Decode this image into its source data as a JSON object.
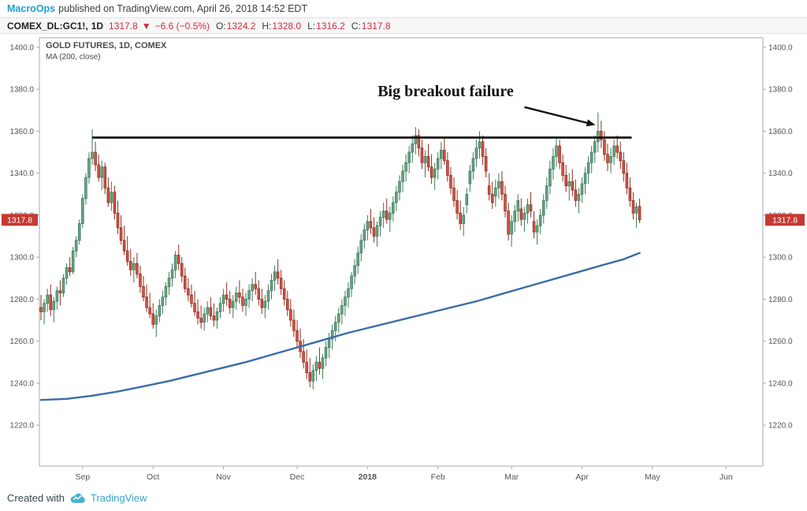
{
  "publish_bar": {
    "author": "MacroOps",
    "text": "published on TradingView.com, April 26, 2018 14:52 EDT"
  },
  "symbol_bar": {
    "symbol": "COMEX_DL:GC1!,",
    "interval": "1D",
    "last": "1317.8",
    "direction": "▼",
    "change": "−6.6 (−0.5%)",
    "ohlc": [
      {
        "label": "O:",
        "value": "1324.2"
      },
      {
        "label": "H:",
        "value": "1328.0"
      },
      {
        "label": "L:",
        "value": "1316.2"
      },
      {
        "label": "C:",
        "value": "1317.8"
      }
    ]
  },
  "legend": {
    "title": "GOLD FUTURES, 1D, COMEX",
    "ma": "MA (200, close)"
  },
  "annotation": {
    "text": "Big breakout failure"
  },
  "footer": {
    "created_with": "Created with",
    "brand": "TradingView"
  },
  "colors": {
    "up": "#6ba583",
    "up_border": "#3d7a5c",
    "down": "#d75442",
    "down_border": "#8f2d22",
    "ma": "#3a6ca8",
    "resistance": "#000000",
    "tag_bg": "#c43a32",
    "tag_text": "#ffffff",
    "axis_text": "#555555",
    "value_red": "#cf2e3c",
    "author_accent": "#1e9fd4",
    "brand_accent": "#3ba3c9"
  },
  "chart_data": {
    "type": "candlestick",
    "title": "GOLD FUTURES, 1D, COMEX",
    "overlay": "MA (200, close)",
    "last_price": 1317.8,
    "price_domain": [
      1200.5,
      1404.5
    ],
    "price_ticks": [
      1400,
      1380,
      1360,
      1340,
      1320,
      1300,
      1280,
      1260,
      1240,
      1220
    ],
    "total_slots": 226,
    "month_ticks": [
      {
        "label": "Sep",
        "slot": 13
      },
      {
        "label": "Oct",
        "slot": 35
      },
      {
        "label": "Nov",
        "slot": 57
      },
      {
        "label": "Dec",
        "slot": 80
      },
      {
        "label": "2018",
        "slot": 102,
        "bold": true
      },
      {
        "label": "Feb",
        "slot": 124
      },
      {
        "label": "Mar",
        "slot": 147
      },
      {
        "label": "Apr",
        "slot": 169
      },
      {
        "label": "May",
        "slot": 191
      },
      {
        "label": "Jun",
        "slot": 214
      }
    ],
    "resistance": {
      "price": 1357,
      "from_slot": 16,
      "to_slot": 184.5
    },
    "annotation": {
      "text": "Big breakout failure",
      "arrow": [
        151,
        1371.5,
        173.2,
        1363
      ]
    },
    "ma200_waypoints": [
      [
        0,
        1232
      ],
      [
        8,
        1232.5
      ],
      [
        16,
        1234
      ],
      [
        24,
        1236
      ],
      [
        32,
        1238.5
      ],
      [
        40,
        1241
      ],
      [
        48,
        1244
      ],
      [
        56,
        1247
      ],
      [
        64,
        1250
      ],
      [
        72,
        1253.5
      ],
      [
        80,
        1257
      ],
      [
        88,
        1260.5
      ],
      [
        96,
        1264
      ],
      [
        104,
        1267
      ],
      [
        112,
        1270
      ],
      [
        120,
        1273
      ],
      [
        128,
        1276
      ],
      [
        136,
        1279
      ],
      [
        144,
        1282.5
      ],
      [
        152,
        1286
      ],
      [
        160,
        1289.5
      ],
      [
        168,
        1293
      ],
      [
        176,
        1296.5
      ],
      [
        182,
        1299
      ],
      [
        187,
        1302
      ]
    ],
    "candles": [
      [
        1276,
        1282,
        1270,
        1274
      ],
      [
        1274,
        1280,
        1268,
        1278
      ],
      [
        1278,
        1285,
        1274,
        1282
      ],
      [
        1282,
        1287,
        1272,
        1275
      ],
      [
        1275,
        1281,
        1269,
        1279
      ],
      [
        1279,
        1286,
        1275,
        1284
      ],
      [
        1284,
        1289,
        1277,
        1283
      ],
      [
        1283,
        1292,
        1281,
        1290
      ],
      [
        1290,
        1297,
        1287,
        1295
      ],
      [
        1295,
        1300,
        1291,
        1293
      ],
      [
        1293,
        1305,
        1292,
        1303
      ],
      [
        1303,
        1310,
        1300,
        1308
      ],
      [
        1308,
        1318,
        1306,
        1316
      ],
      [
        1316,
        1330,
        1314,
        1328
      ],
      [
        1328,
        1340,
        1325,
        1338
      ],
      [
        1338,
        1350,
        1335,
        1347
      ],
      [
        1347,
        1361,
        1344,
        1350
      ],
      [
        1350,
        1355,
        1341,
        1344
      ],
      [
        1344,
        1349,
        1336,
        1338
      ],
      [
        1338,
        1346,
        1332,
        1343
      ],
      [
        1343,
        1345,
        1330,
        1333
      ],
      [
        1333,
        1338,
        1324,
        1326
      ],
      [
        1326,
        1336,
        1322,
        1331
      ],
      [
        1331,
        1334,
        1318,
        1321
      ],
      [
        1321,
        1327,
        1311,
        1314
      ],
      [
        1314,
        1320,
        1306,
        1308
      ],
      [
        1308,
        1315,
        1301,
        1303
      ],
      [
        1303,
        1310,
        1296,
        1298
      ],
      [
        1298,
        1304,
        1291,
        1294
      ],
      [
        1294,
        1300,
        1288,
        1297
      ],
      [
        1297,
        1302,
        1290,
        1292
      ],
      [
        1292,
        1296,
        1283,
        1286
      ],
      [
        1286,
        1291,
        1279,
        1281
      ],
      [
        1281,
        1287,
        1274,
        1276
      ],
      [
        1276,
        1283,
        1271,
        1273
      ],
      [
        1273,
        1278,
        1266,
        1268
      ],
      [
        1268,
        1275,
        1262,
        1272
      ],
      [
        1272,
        1280,
        1269,
        1277
      ],
      [
        1277,
        1284,
        1273,
        1281
      ],
      [
        1281,
        1288,
        1277,
        1286
      ],
      [
        1286,
        1293,
        1282,
        1290
      ],
      [
        1290,
        1297,
        1286,
        1294
      ],
      [
        1294,
        1303,
        1290,
        1301
      ],
      [
        1301,
        1306,
        1294,
        1297
      ],
      [
        1297,
        1300,
        1288,
        1291
      ],
      [
        1291,
        1295,
        1283,
        1285
      ],
      [
        1285,
        1290,
        1279,
        1282
      ],
      [
        1282,
        1287,
        1276,
        1278
      ],
      [
        1278,
        1284,
        1272,
        1274
      ],
      [
        1274,
        1280,
        1268,
        1271
      ],
      [
        1271,
        1277,
        1266,
        1269
      ],
      [
        1269,
        1276,
        1265,
        1273
      ],
      [
        1273,
        1279,
        1269,
        1276
      ],
      [
        1276,
        1281,
        1270,
        1272
      ],
      [
        1272,
        1278,
        1267,
        1270
      ],
      [
        1270,
        1276,
        1266,
        1274
      ],
      [
        1274,
        1281,
        1271,
        1278
      ],
      [
        1278,
        1285,
        1274,
        1282
      ],
      [
        1282,
        1288,
        1277,
        1280
      ],
      [
        1280,
        1284,
        1273,
        1276
      ],
      [
        1276,
        1282,
        1271,
        1279
      ],
      [
        1279,
        1286,
        1275,
        1283
      ],
      [
        1283,
        1289,
        1278,
        1281
      ],
      [
        1281,
        1285,
        1274,
        1277
      ],
      [
        1277,
        1283,
        1272,
        1280
      ],
      [
        1280,
        1287,
        1276,
        1284
      ],
      [
        1284,
        1290,
        1279,
        1287
      ],
      [
        1287,
        1293,
        1282,
        1285
      ],
      [
        1285,
        1289,
        1277,
        1280
      ],
      [
        1280,
        1285,
        1273,
        1276
      ],
      [
        1276,
        1282,
        1271,
        1279
      ],
      [
        1279,
        1287,
        1275,
        1284
      ],
      [
        1284,
        1292,
        1280,
        1289
      ],
      [
        1289,
        1296,
        1284,
        1293
      ],
      [
        1293,
        1299,
        1287,
        1290
      ],
      [
        1290,
        1294,
        1282,
        1285
      ],
      [
        1285,
        1289,
        1277,
        1280
      ],
      [
        1280,
        1284,
        1272,
        1275
      ],
      [
        1275,
        1280,
        1267,
        1270
      ],
      [
        1270,
        1275,
        1262,
        1265
      ],
      [
        1265,
        1270,
        1257,
        1260
      ],
      [
        1260,
        1266,
        1252,
        1255
      ],
      [
        1255,
        1261,
        1247,
        1250
      ],
      [
        1250,
        1256,
        1242,
        1245
      ],
      [
        1245,
        1252,
        1238,
        1241
      ],
      [
        1241,
        1249,
        1237,
        1246
      ],
      [
        1246,
        1253,
        1241,
        1250
      ],
      [
        1250,
        1257,
        1244,
        1247
      ],
      [
        1247,
        1254,
        1242,
        1252
      ],
      [
        1252,
        1260,
        1248,
        1257
      ],
      [
        1257,
        1264,
        1252,
        1261
      ],
      [
        1261,
        1268,
        1256,
        1265
      ],
      [
        1265,
        1272,
        1260,
        1269
      ],
      [
        1269,
        1276,
        1264,
        1273
      ],
      [
        1273,
        1280,
        1268,
        1277
      ],
      [
        1277,
        1284,
        1272,
        1281
      ],
      [
        1281,
        1288,
        1276,
        1285
      ],
      [
        1285,
        1293,
        1281,
        1291
      ],
      [
        1291,
        1299,
        1287,
        1296
      ],
      [
        1296,
        1305,
        1292,
        1302
      ],
      [
        1302,
        1311,
        1298,
        1308
      ],
      [
        1308,
        1316,
        1304,
        1313
      ],
      [
        1313,
        1320,
        1308,
        1317
      ],
      [
        1317,
        1323,
        1311,
        1314
      ],
      [
        1314,
        1319,
        1307,
        1310
      ],
      [
        1310,
        1317,
        1305,
        1315
      ],
      [
        1315,
        1322,
        1310,
        1319
      ],
      [
        1319,
        1326,
        1314,
        1322
      ],
      [
        1322,
        1328,
        1316,
        1318
      ],
      [
        1318,
        1324,
        1312,
        1321
      ],
      [
        1321,
        1329,
        1317,
        1326
      ],
      [
        1326,
        1334,
        1322,
        1331
      ],
      [
        1331,
        1339,
        1327,
        1336
      ],
      [
        1336,
        1344,
        1331,
        1341
      ],
      [
        1341,
        1349,
        1336,
        1345
      ],
      [
        1345,
        1353,
        1340,
        1350
      ],
      [
        1350,
        1358,
        1345,
        1354
      ],
      [
        1354,
        1362,
        1349,
        1358
      ],
      [
        1358,
        1361,
        1348,
        1352
      ],
      [
        1352,
        1356,
        1342,
        1345
      ],
      [
        1345,
        1351,
        1338,
        1348
      ],
      [
        1348,
        1354,
        1341,
        1343
      ],
      [
        1343,
        1349,
        1335,
        1338
      ],
      [
        1338,
        1345,
        1332,
        1342
      ],
      [
        1342,
        1350,
        1337,
        1347
      ],
      [
        1347,
        1355,
        1342,
        1351
      ],
      [
        1351,
        1357,
        1344,
        1346
      ],
      [
        1346,
        1350,
        1336,
        1339
      ],
      [
        1339,
        1343,
        1330,
        1333
      ],
      [
        1333,
        1338,
        1324,
        1327
      ],
      [
        1327,
        1332,
        1318,
        1321
      ],
      [
        1321,
        1327,
        1313,
        1316
      ],
      [
        1316,
        1324,
        1310,
        1320
      ],
      [
        1325,
        1333,
        1321,
        1330
      ],
      [
        1335,
        1344,
        1331,
        1341
      ],
      [
        1341,
        1350,
        1337,
        1347
      ],
      [
        1347,
        1356,
        1343,
        1352
      ],
      [
        1352,
        1360,
        1347,
        1355
      ],
      [
        1355,
        1358,
        1344,
        1348
      ],
      [
        1348,
        1352,
        1338,
        1341
      ],
      [
        1334,
        1340,
        1327,
        1330
      ],
      [
        1330,
        1336,
        1323,
        1326
      ],
      [
        1329,
        1337,
        1324,
        1333
      ],
      [
        1333,
        1340,
        1328,
        1336
      ],
      [
        1336,
        1341,
        1327,
        1330
      ],
      [
        1330,
        1334,
        1319,
        1322
      ],
      [
        1322,
        1326,
        1308,
        1311
      ],
      [
        1311,
        1320,
        1305,
        1317
      ],
      [
        1317,
        1325,
        1312,
        1322
      ],
      [
        1322,
        1330,
        1317,
        1327
      ],
      [
        1323,
        1328,
        1315,
        1318
      ],
      [
        1318,
        1324,
        1312,
        1321
      ],
      [
        1321,
        1328,
        1316,
        1325
      ],
      [
        1325,
        1331,
        1319,
        1322
      ],
      [
        1317,
        1322,
        1309,
        1312
      ],
      [
        1312,
        1318,
        1306,
        1315
      ],
      [
        1315,
        1323,
        1311,
        1320
      ],
      [
        1320,
        1330,
        1316,
        1327
      ],
      [
        1327,
        1338,
        1323,
        1334
      ],
      [
        1334,
        1346,
        1330,
        1342
      ],
      [
        1342,
        1352,
        1337,
        1348
      ],
      [
        1348,
        1357,
        1343,
        1353
      ],
      [
        1353,
        1356,
        1342,
        1345
      ],
      [
        1345,
        1349,
        1336,
        1339
      ],
      [
        1339,
        1344,
        1331,
        1334
      ],
      [
        1334,
        1340,
        1327,
        1336
      ],
      [
        1336,
        1342,
        1329,
        1332
      ],
      [
        1332,
        1337,
        1324,
        1327
      ],
      [
        1327,
        1333,
        1321,
        1330
      ],
      [
        1330,
        1338,
        1326,
        1335
      ],
      [
        1335,
        1343,
        1330,
        1340
      ],
      [
        1340,
        1348,
        1335,
        1345
      ],
      [
        1345,
        1353,
        1340,
        1350
      ],
      [
        1350,
        1358,
        1345,
        1355
      ],
      [
        1355,
        1369,
        1350,
        1360
      ],
      [
        1360,
        1365,
        1352,
        1356
      ],
      [
        1356,
        1360,
        1346,
        1349
      ],
      [
        1349,
        1354,
        1341,
        1345
      ],
      [
        1345,
        1352,
        1340,
        1348
      ],
      [
        1348,
        1356,
        1344,
        1353
      ],
      [
        1353,
        1358,
        1347,
        1350
      ],
      [
        1350,
        1355,
        1342,
        1346
      ],
      [
        1346,
        1350,
        1336,
        1340
      ],
      [
        1340,
        1345,
        1330,
        1333
      ],
      [
        1333,
        1338,
        1324,
        1327
      ],
      [
        1327,
        1331,
        1318,
        1321
      ],
      [
        1321,
        1326,
        1314,
        1324
      ],
      [
        1324.2,
        1328.0,
        1316.2,
        1317.8
      ]
    ]
  }
}
